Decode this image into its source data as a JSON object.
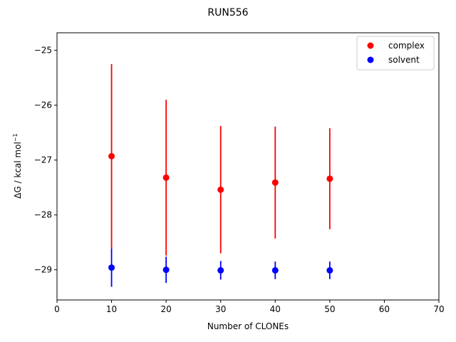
{
  "chart_data": {
    "type": "scatter",
    "title": "RUN556",
    "xlabel": "Number of CLONEs",
    "ylabel_main": "ΔG / kcal mol",
    "ylabel_sup": "−1",
    "xlim": [
      0,
      70
    ],
    "ylim": [
      -29.55,
      -24.68
    ],
    "xticks": [
      0,
      10,
      20,
      30,
      40,
      50,
      60,
      70
    ],
    "yticks": [
      -29,
      -28,
      -27,
      -26,
      -25
    ],
    "xtick_labels": [
      "0",
      "10",
      "20",
      "30",
      "40",
      "50",
      "60",
      "70"
    ],
    "ytick_labels": [
      "−29",
      "−28",
      "−27",
      "−26",
      "−25"
    ],
    "grid": false,
    "legend_position": "top-right",
    "series": [
      {
        "name": "complex",
        "color": "#ff0000",
        "x": [
          10,
          20,
          30,
          40,
          50
        ],
        "y": [
          -26.93,
          -27.32,
          -27.54,
          -27.41,
          -27.34
        ],
        "yerr": [
          1.68,
          1.42,
          1.16,
          1.02,
          0.92
        ]
      },
      {
        "name": "solvent",
        "color": "#0000ff",
        "x": [
          10,
          20,
          30,
          40,
          50
        ],
        "y": [
          -28.96,
          -29.0,
          -29.01,
          -29.01,
          -29.01
        ],
        "yerr": [
          0.35,
          0.24,
          0.17,
          0.16,
          0.16
        ]
      }
    ]
  }
}
